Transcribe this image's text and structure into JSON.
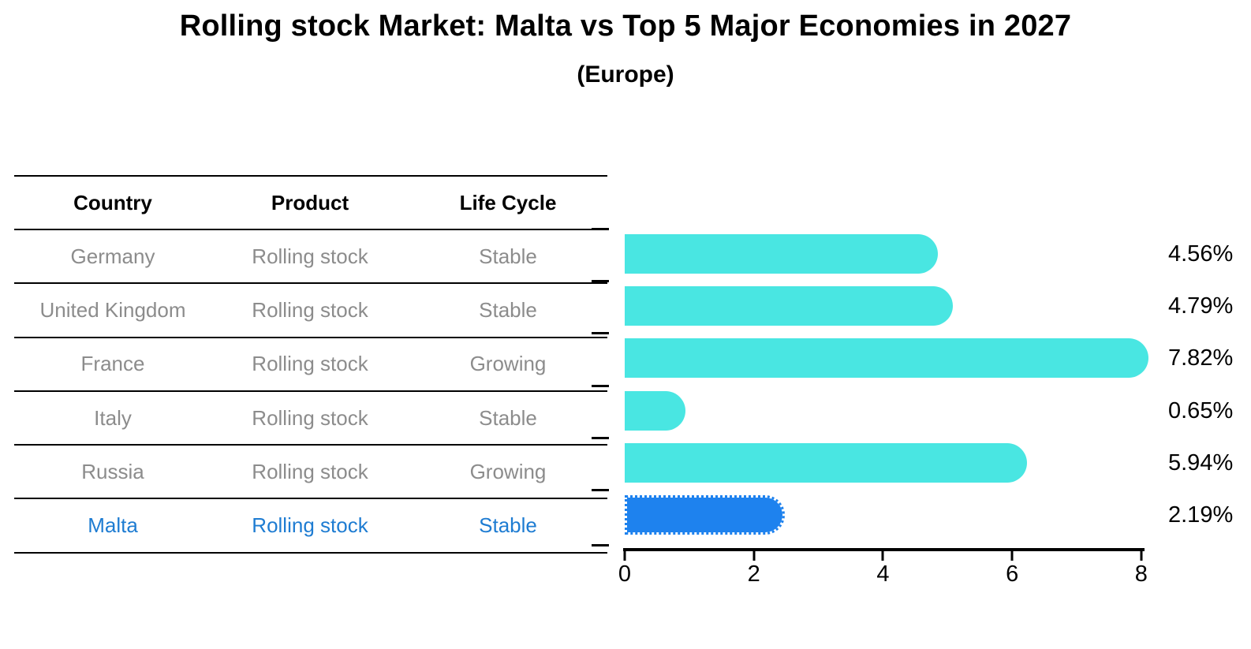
{
  "title": "Rolling stock Market: Malta vs Top 5 Major Economies in 2027",
  "subtitle": "(Europe)",
  "colors": {
    "bar": "#49E6E2",
    "highlight_bar": "#1E82EE",
    "highlight_text": "#1E7CD2",
    "muted_text": "#8C8C8C",
    "ink": "#000000"
  },
  "table": {
    "columns": [
      "Country",
      "Product",
      "Life Cycle"
    ],
    "rows": [
      {
        "country": "Germany",
        "product": "Rolling stock",
        "life_cycle": "Stable"
      },
      {
        "country": "United Kingdom",
        "product": "Rolling stock",
        "life_cycle": "Stable"
      },
      {
        "country": "France",
        "product": "Rolling stock",
        "life_cycle": "Growing"
      },
      {
        "country": "Italy",
        "product": "Rolling stock",
        "life_cycle": "Stable"
      },
      {
        "country": "Russia",
        "product": "Rolling stock",
        "life_cycle": "Growing"
      },
      {
        "country": "Malta",
        "product": "Rolling stock",
        "life_cycle": "Stable"
      }
    ],
    "highlight_row": "Malta"
  },
  "chart_data": {
    "type": "bar",
    "orientation": "horizontal",
    "title": "Rolling stock Market: Malta vs Top 5 Major Economies in 2027",
    "subtitle": "(Europe)",
    "categories": [
      "Germany",
      "United Kingdom",
      "France",
      "Italy",
      "Russia",
      "Malta"
    ],
    "values": [
      4.56,
      4.79,
      7.82,
      0.65,
      5.94,
      2.19
    ],
    "value_labels": [
      "4.56%",
      "4.79%",
      "7.82%",
      "0.65%",
      "5.94%",
      "2.19%"
    ],
    "unit": "%",
    "xticks": [
      0,
      2,
      4,
      6,
      8
    ],
    "xlim": [
      0,
      8.1
    ],
    "grid": false,
    "legend": false,
    "highlight_index": 5
  }
}
